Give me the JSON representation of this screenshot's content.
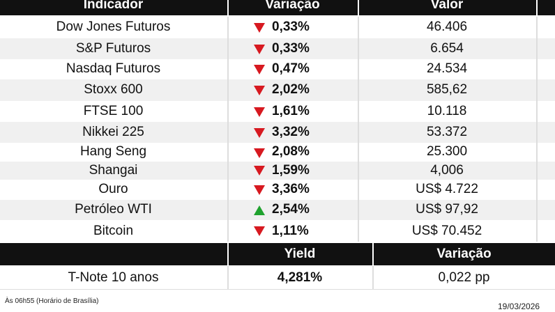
{
  "table": {
    "header": [
      "Indicador",
      "Variação",
      "Valor"
    ],
    "rows": [
      {
        "name": "Dow Jones Futuros",
        "change": "0,33%",
        "direction": "down",
        "value": "46.406"
      },
      {
        "name": "S&P Futuros",
        "change": "0,33%",
        "direction": "down",
        "value": "6.654"
      },
      {
        "name": "Nasdaq Futuros",
        "change": "0,47%",
        "direction": "down",
        "value": "24.534"
      },
      {
        "name": "Stoxx 600",
        "change": "2,02%",
        "direction": "down",
        "value": "585,62"
      },
      {
        "name": "FTSE 100",
        "change": "1,61%",
        "direction": "down",
        "value": "10.118"
      },
      {
        "name": "Nikkei 225",
        "change": "3,32%",
        "direction": "down",
        "value": "53.372"
      },
      {
        "name": "Hang Seng",
        "change": "2,08%",
        "direction": "down",
        "value": "25.300"
      },
      {
        "name": "Shangai",
        "change": "1,59%",
        "direction": "down",
        "value": "4,006"
      },
      {
        "name": "Ouro",
        "change": "3,36%",
        "direction": "down",
        "value": "US$ 4.722"
      },
      {
        "name": "Petróleo WTI",
        "change": "2,54%",
        "direction": "up",
        "value": "US$ 97,92"
      },
      {
        "name": "Bitcoin",
        "change": "1,11%",
        "direction": "down",
        "value": "US$ 70.452"
      }
    ],
    "header2": [
      "Yield",
      "Variação"
    ],
    "bond": {
      "name": "T-Note 10 anos",
      "yield": "4,281%",
      "change": "0,022 pp"
    }
  },
  "footer": {
    "time": "Às 06h55 (Horário de Brasília)",
    "date": "19/03/2026"
  }
}
